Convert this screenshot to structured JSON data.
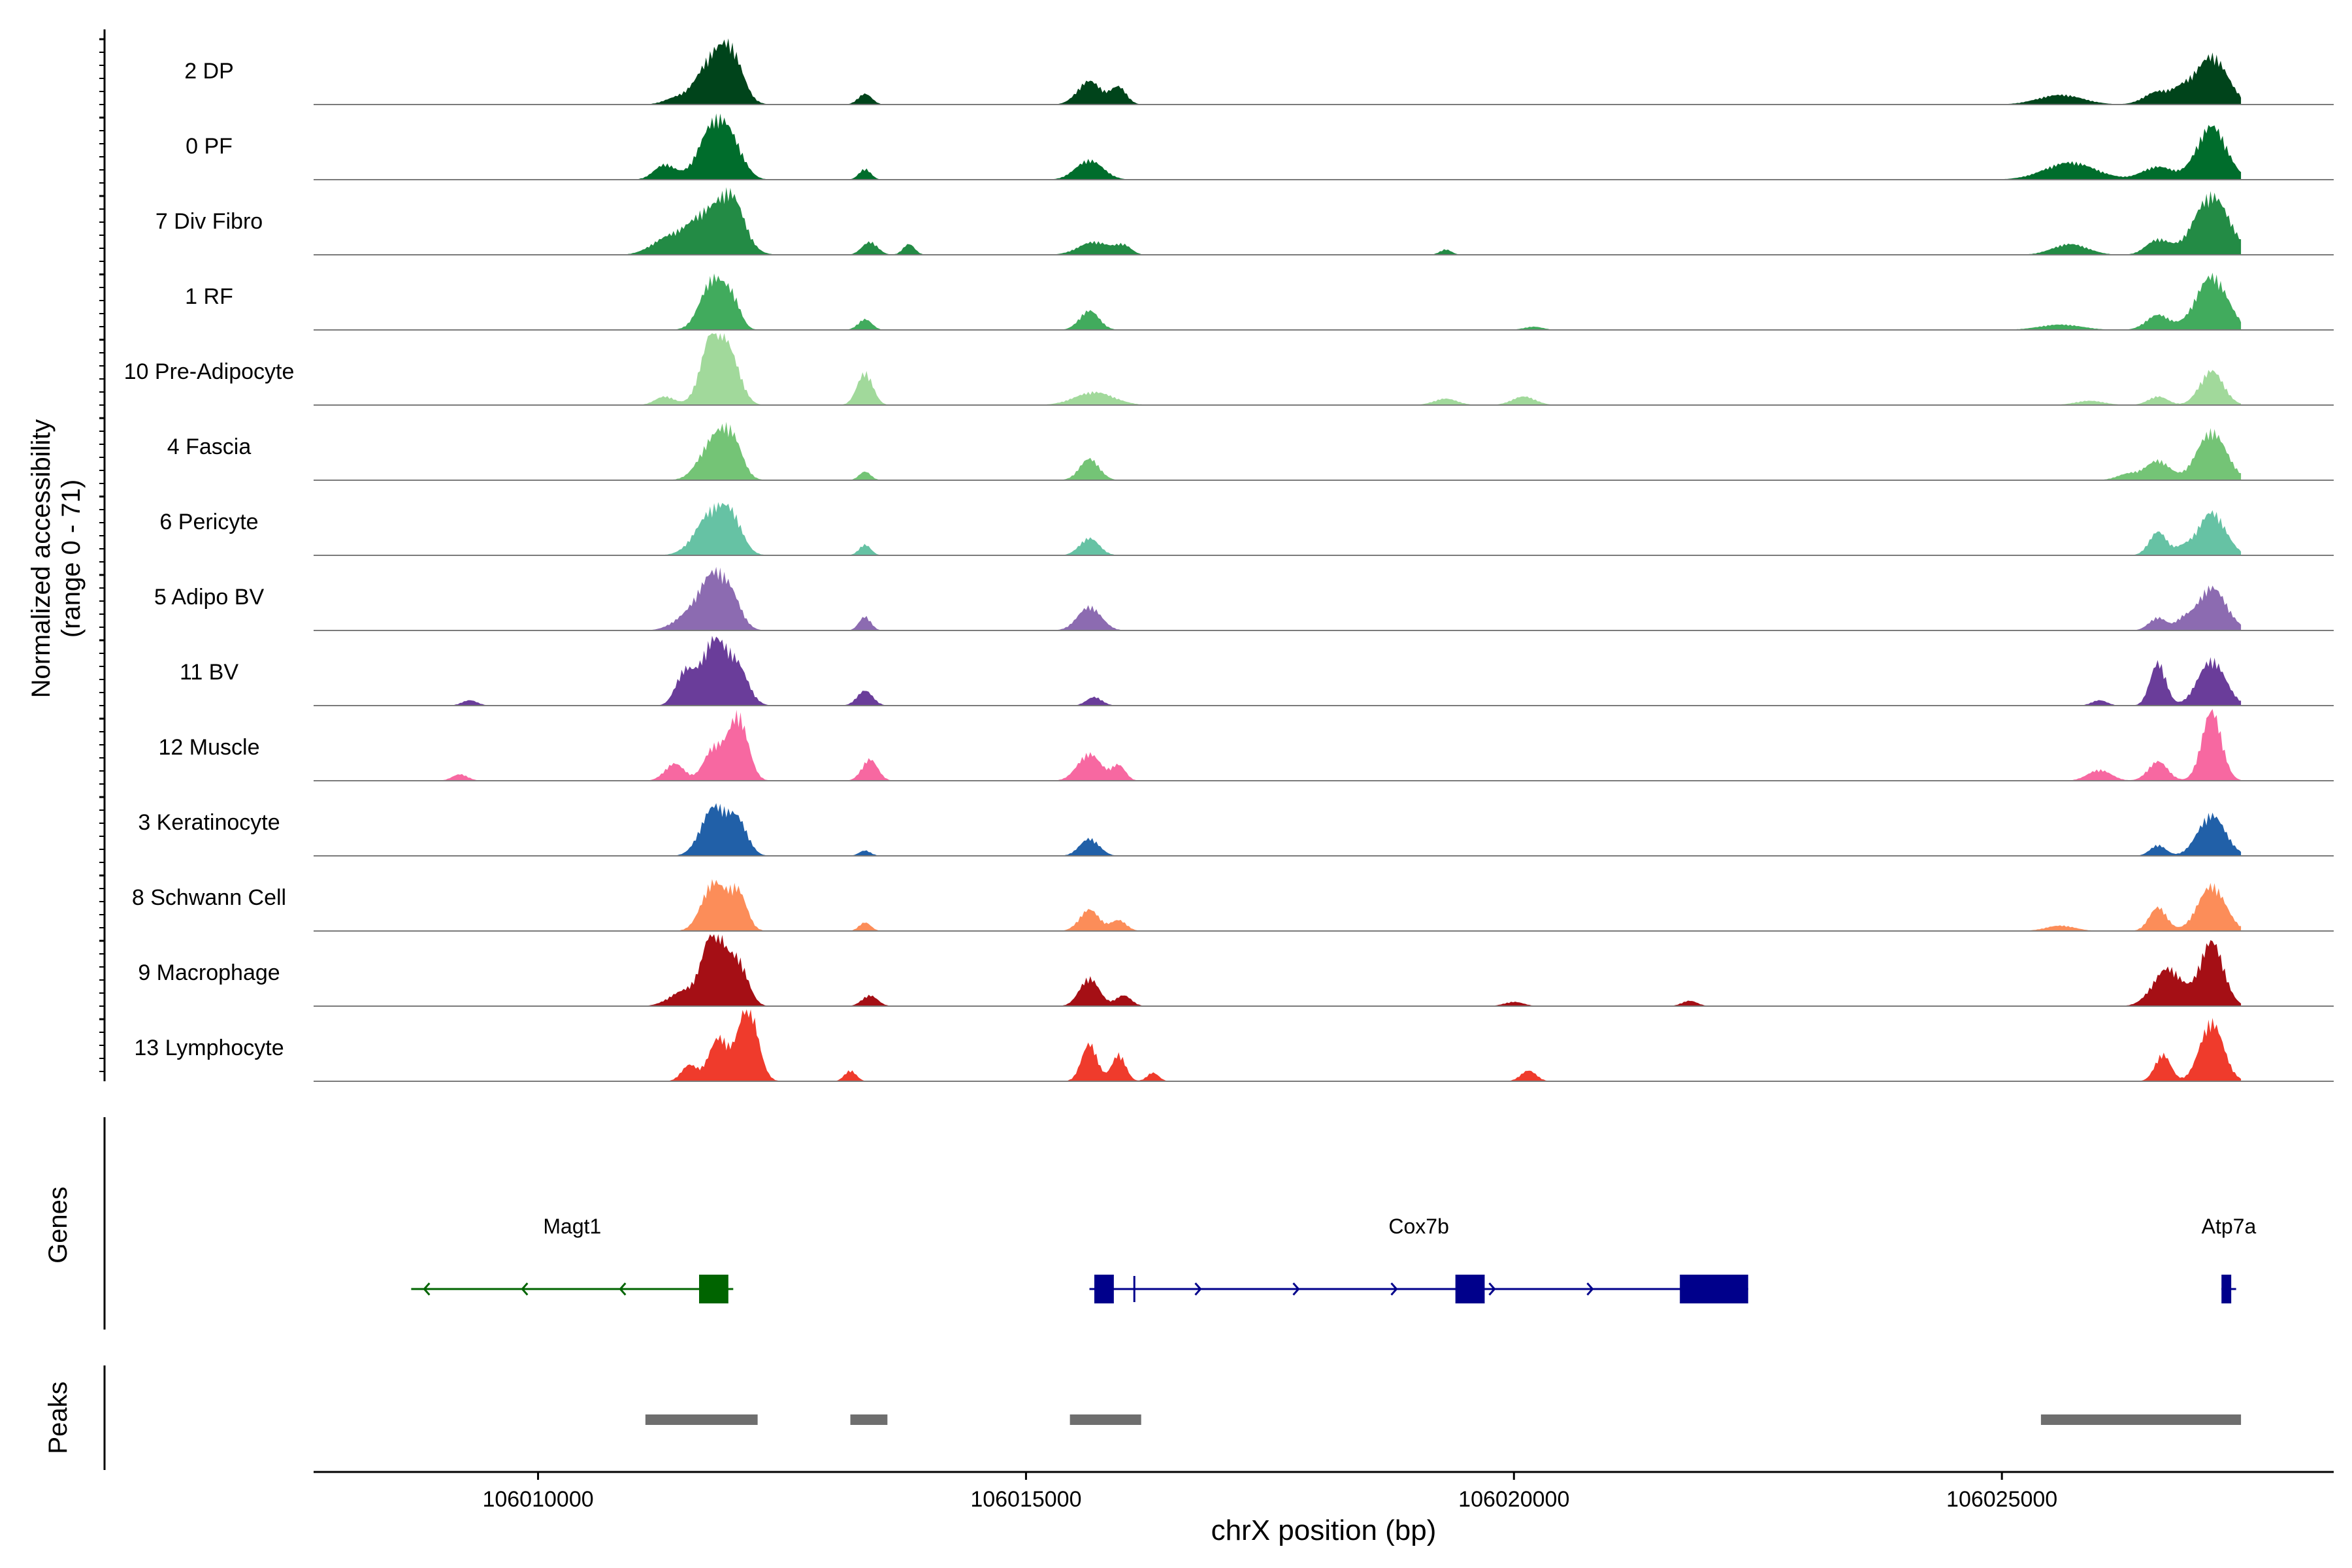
{
  "chart_data": {
    "type": "area",
    "title": "",
    "ylabel_line1": "Normalized accessibility",
    "ylabel_line2": "(range 0 - 71)",
    "xlabel": "chrX position (bp)",
    "xlim": [
      106007700,
      106028400
    ],
    "x_ticks": [
      106010000,
      106015000,
      106020000,
      106025000
    ],
    "x_tick_labels": [
      "106010000",
      "106015000",
      "106020000",
      "106025000"
    ],
    "ymax": 71,
    "tracks": [
      {
        "name": "2 DP",
        "color": "#00441b",
        "peaks": [
          [
            106011810,
            45,
            170
          ],
          [
            106012000,
            28,
            110
          ],
          [
            106011400,
            5,
            120
          ],
          [
            106013350,
            10,
            70
          ],
          [
            106015650,
            22,
            120
          ],
          [
            106015950,
            16,
            80
          ],
          [
            106025600,
            9,
            230
          ],
          [
            106026600,
            12,
            140
          ],
          [
            106027150,
            45,
            160
          ],
          [
            106026850,
            10,
            100
          ]
        ]
      },
      {
        "name": "0 PF",
        "color": "#006d2c",
        "peaks": [
          [
            106011800,
            50,
            150
          ],
          [
            106011300,
            14,
            110
          ],
          [
            106012000,
            22,
            120
          ],
          [
            106013350,
            10,
            60
          ],
          [
            106015650,
            18,
            140
          ],
          [
            106025700,
            16,
            260
          ],
          [
            106026600,
            12,
            160
          ],
          [
            106027150,
            50,
            150
          ]
        ]
      },
      {
        "name": "7 Div Fibro",
        "color": "#238b45",
        "peaks": [
          [
            106011750,
            40,
            220
          ],
          [
            106012000,
            35,
            120
          ],
          [
            106011300,
            12,
            160
          ],
          [
            106013400,
            12,
            80
          ],
          [
            106013800,
            10,
            60
          ],
          [
            106015700,
            12,
            160
          ],
          [
            106016000,
            8,
            80
          ],
          [
            106026600,
            14,
            120
          ],
          [
            106027150,
            55,
            180
          ],
          [
            106025700,
            10,
            180
          ],
          [
            106019300,
            5,
            60
          ]
        ]
      },
      {
        "name": "1 RF",
        "color": "#41ab5d",
        "peaks": [
          [
            106011800,
            48,
            130
          ],
          [
            106012000,
            20,
            80
          ],
          [
            106013350,
            10,
            70
          ],
          [
            106015650,
            18,
            100
          ],
          [
            106026600,
            14,
            120
          ],
          [
            106027150,
            50,
            160
          ],
          [
            106025600,
            5,
            220
          ],
          [
            106020200,
            3,
            100
          ]
        ]
      },
      {
        "name": "10 Pre-Adipocyte",
        "color": "#a1d99b",
        "peaks": [
          [
            106011800,
            70,
            120
          ],
          [
            106012000,
            30,
            100
          ],
          [
            106011300,
            8,
            100
          ],
          [
            106013350,
            30,
            80
          ],
          [
            106015700,
            12,
            200
          ],
          [
            106019300,
            6,
            120
          ],
          [
            106020100,
            8,
            120
          ],
          [
            106027150,
            32,
            120
          ],
          [
            106026600,
            8,
            100
          ],
          [
            106025900,
            4,
            150
          ]
        ]
      },
      {
        "name": "4 Fascia",
        "color": "#74c476",
        "peaks": [
          [
            106011820,
            40,
            150
          ],
          [
            106012000,
            25,
            100
          ],
          [
            106013350,
            8,
            60
          ],
          [
            106015650,
            20,
            100
          ],
          [
            106026600,
            18,
            120
          ],
          [
            106027150,
            45,
            150
          ],
          [
            106026300,
            6,
            120
          ]
        ]
      },
      {
        "name": "6 Pericyte",
        "color": "#66c2a4",
        "peaks": [
          [
            106011800,
            42,
            170
          ],
          [
            106012000,
            20,
            100
          ],
          [
            106013350,
            10,
            60
          ],
          [
            106015650,
            16,
            100
          ],
          [
            106026600,
            22,
            90
          ],
          [
            106027150,
            40,
            140
          ],
          [
            106026850,
            6,
            80
          ]
        ]
      },
      {
        "name": "5 Adipo BV",
        "color": "#8c6bb1",
        "peaks": [
          [
            106011800,
            52,
            150
          ],
          [
            106011500,
            10,
            140
          ],
          [
            106012000,
            16,
            100
          ],
          [
            106013350,
            13,
            60
          ],
          [
            106015650,
            22,
            120
          ],
          [
            106026600,
            12,
            90
          ],
          [
            106027150,
            40,
            150
          ],
          [
            106026850,
            8,
            70
          ]
        ]
      },
      {
        "name": "11 BV",
        "color": "#6a3d9a",
        "peaks": [
          [
            106011800,
            60,
            130
          ],
          [
            106011500,
            30,
            90
          ],
          [
            106012050,
            32,
            110
          ],
          [
            106013350,
            14,
            80
          ],
          [
            106015700,
            8,
            80
          ],
          [
            106026600,
            40,
            80
          ],
          [
            106027150,
            42,
            140
          ],
          [
            106009300,
            5,
            80
          ],
          [
            106008500,
            4,
            60
          ],
          [
            106026000,
            5,
            80
          ]
        ]
      },
      {
        "name": "12 Muscle",
        "color": "#f768a1",
        "peaks": [
          [
            106012050,
            60,
            100
          ],
          [
            106011800,
            30,
            100
          ],
          [
            106011400,
            16,
            100
          ],
          [
            106013400,
            20,
            80
          ],
          [
            106015650,
            25,
            120
          ],
          [
            106015950,
            14,
            70
          ],
          [
            106027150,
            65,
            100
          ],
          [
            106026600,
            18,
            100
          ],
          [
            106026000,
            10,
            120
          ],
          [
            106009200,
            6,
            80
          ]
        ]
      },
      {
        "name": "3 Keratinocyte",
        "color": "#2160a8",
        "peaks": [
          [
            106011800,
            45,
            130
          ],
          [
            106012050,
            30,
            100
          ],
          [
            106013350,
            5,
            60
          ],
          [
            106015650,
            16,
            100
          ],
          [
            106027150,
            38,
            140
          ],
          [
            106026600,
            10,
            80
          ]
        ]
      },
      {
        "name": "8 Schwann Cell",
        "color": "#fc8d59",
        "peaks": [
          [
            106011800,
            45,
            120
          ],
          [
            106012050,
            35,
            90
          ],
          [
            106013350,
            8,
            60
          ],
          [
            106015650,
            20,
            100
          ],
          [
            106015950,
            10,
            80
          ],
          [
            106026600,
            22,
            90
          ],
          [
            106027150,
            42,
            140
          ],
          [
            106025600,
            5,
            150
          ]
        ]
      },
      {
        "name": "9 Macrophage",
        "color": "#a50f15",
        "peaks": [
          [
            106011800,
            70,
            110
          ],
          [
            106012050,
            40,
            100
          ],
          [
            106011500,
            14,
            150
          ],
          [
            106013400,
            10,
            80
          ],
          [
            106015650,
            26,
            100
          ],
          [
            106016000,
            10,
            80
          ],
          [
            106027150,
            60,
            120
          ],
          [
            106026700,
            35,
            150
          ],
          [
            106020000,
            4,
            100
          ],
          [
            106021800,
            5,
            80
          ]
        ]
      },
      {
        "name": "13 Lymphocyte",
        "color": "#ef3b2c",
        "peaks": [
          [
            106012150,
            71,
            100
          ],
          [
            106011850,
            40,
            100
          ],
          [
            106011550,
            15,
            80
          ],
          [
            106015650,
            35,
            80
          ],
          [
            106015950,
            25,
            70
          ],
          [
            106016300,
            8,
            60
          ],
          [
            106026650,
            25,
            80
          ],
          [
            106027150,
            55,
            120
          ],
          [
            106020150,
            10,
            80
          ],
          [
            106013200,
            10,
            60
          ]
        ]
      }
    ],
    "genes": [
      {
        "name": "Magt1",
        "strand": "-",
        "start": 106008700,
        "end": 106012000,
        "color": "#006400",
        "exons": [
          [
            106011650,
            106011950
          ]
        ]
      },
      {
        "name": "Cox7b",
        "strand": "+",
        "start": 106015650,
        "end": 106022400,
        "color": "#00008b",
        "exons": [
          [
            106015700,
            106015900
          ],
          [
            106016100,
            106016120
          ],
          [
            106019400,
            106019700
          ],
          [
            106021700,
            106022400
          ]
        ]
      },
      {
        "name": "Atp7a",
        "strand": "+",
        "start": 106027250,
        "end": 106027400,
        "color": "#00008b",
        "exons": [
          [
            106027250,
            106027350
          ]
        ]
      }
    ],
    "peaks": [
      [
        106011100,
        106012250
      ],
      [
        106013200,
        106013580
      ],
      [
        106015450,
        106016180
      ],
      [
        106025400,
        106027450
      ]
    ],
    "genes_label": "Genes",
    "peaks_label": "Peaks"
  }
}
